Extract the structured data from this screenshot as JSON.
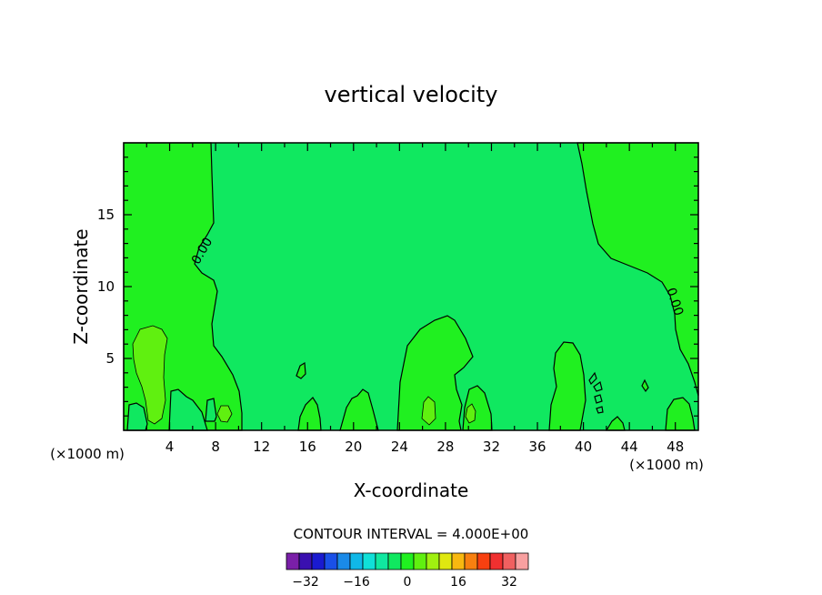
{
  "chart_data": {
    "type": "heatmap",
    "title": "vertical velocity",
    "xlabel": "X-coordinate",
    "ylabel": "Z-coordinate",
    "x_unit": "(×1000 m)",
    "x_unit_right": "(×1000 m)",
    "xlim": [
      0,
      50
    ],
    "ylim": [
      0,
      20
    ],
    "x_ticks": [
      "4",
      "8",
      "12",
      "16",
      "20",
      "24",
      "28",
      "32",
      "36",
      "40",
      "44",
      "48"
    ],
    "y_ticks": [
      "5",
      "10",
      "15"
    ],
    "contour_label": "0.00",
    "contour_interval_text": "CONTOUR INTERVAL = 4.000E+00",
    "colorbar": {
      "colors": [
        "#7a1fa8",
        "#3a10b0",
        "#1a1ad0",
        "#1a50e8",
        "#1a8ae8",
        "#10b8e8",
        "#10e0d8",
        "#10e8a0",
        "#10e860",
        "#20f020",
        "#60f010",
        "#a0f010",
        "#e0e810",
        "#f8b810",
        "#f88010",
        "#f84010",
        "#f03030",
        "#f06060",
        "#f8a0a0"
      ],
      "tick_labels": [
        "−32",
        "−16",
        "0",
        "16",
        "32"
      ],
      "tick_values": [
        -32,
        -16,
        0,
        16,
        32
      ]
    },
    "field_colors": {
      "positive_region": "#20f020",
      "zero_background": "#10e860",
      "strong_positive": "#60f010"
    }
  }
}
